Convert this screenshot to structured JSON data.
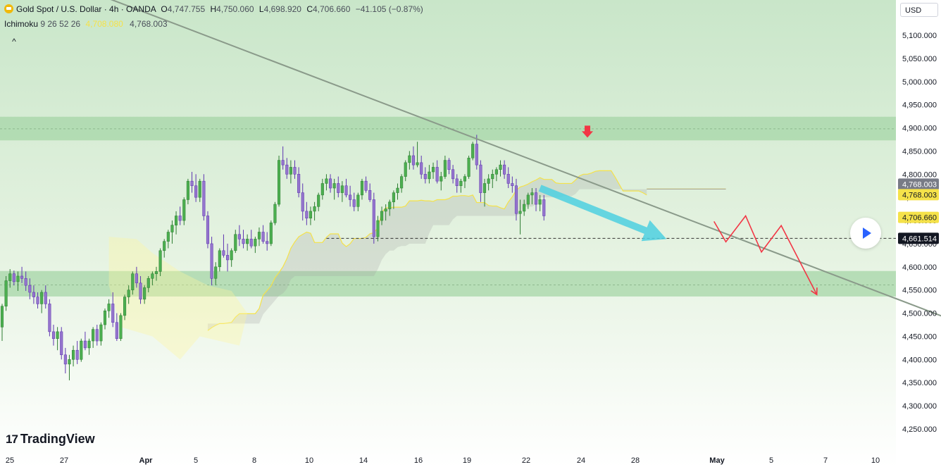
{
  "header": {
    "symbol_title": "Gold Spot / U.S. Dollar · 4h · OANDA",
    "ohlc": [
      {
        "key": "O",
        "value": "4,747.755"
      },
      {
        "key": "H",
        "value": "4,750.060"
      },
      {
        "key": "L",
        "value": "4,698.920"
      },
      {
        "key": "C",
        "value": "4,706.660"
      }
    ],
    "change": "−41.105 (−0.87%)"
  },
  "indicator": {
    "name": "Ichimoku",
    "params": "9 26 52 26",
    "value1": "4,708.080",
    "value2": "4,768.003"
  },
  "collapse_label": "^",
  "currency": "USD",
  "logo": {
    "mark": "17",
    "text": "TradingView"
  },
  "colors": {
    "bull": "#4caf50",
    "bear": "#9575cd",
    "zone": "#a5d6a7",
    "arrow_blue": "#4dd0e1",
    "arrow_red": "#f23645",
    "trendline": "#8a9a8a",
    "tenkan": "#f5e24a"
  },
  "chart_data": {
    "type": "candlestick",
    "timeframe": "4h",
    "y_ticks": [
      4250,
      4300,
      4350,
      4400,
      4450,
      4500,
      4550,
      4600,
      4650,
      4700,
      4750,
      4800,
      4850,
      4900,
      4950,
      5000,
      5050,
      5100
    ],
    "y_tick_labels": [
      "4,250.000",
      "4,300.000",
      "4,350.000",
      "4,400.000",
      "4,450.000",
      "4,500.000",
      "4,550.000",
      "4,600.000",
      "4,650.000",
      "4,700.000",
      "4,750.000",
      "4,800.000",
      "4,850.000",
      "4,900.000",
      "4,950.000",
      "5,000.000",
      "5,050.000",
      "5,100.000"
    ],
    "x_labels": [
      "25",
      "27",
      "Apr",
      "5",
      "8",
      "10",
      "14",
      "16",
      "19",
      "22",
      "24",
      "28",
      "May",
      "5",
      "7",
      "10"
    ],
    "price_labels": [
      {
        "text": "4,768.003",
        "price": 4768,
        "kind": "senkou-b"
      },
      {
        "text": "4,768.003",
        "price": 4768,
        "kind": "senkou-a"
      },
      {
        "text": "4,706.660",
        "price": 4706.66,
        "kind": "last"
      },
      {
        "text": "4,661.514",
        "price": 4661.514,
        "kind": "crosshair"
      }
    ],
    "zones": [
      {
        "top": 4924,
        "bottom": 4873,
        "mid": 4898
      },
      {
        "top": 4591,
        "bottom": 4536,
        "mid": 4561
      }
    ],
    "horizontal_level": 4661.514,
    "trendline": [
      {
        "bar": -1,
        "price": 5270
      },
      {
        "bar": 291,
        "price": 4320
      }
    ],
    "blue_arrow": [
      {
        "bar": 136,
        "price": 4770
      },
      {
        "bar": 168,
        "price": 4660
      }
    ],
    "red_marker": {
      "bar": 148,
      "price": 4885
    },
    "red_path": [
      [
        180,
        4698
      ],
      [
        183,
        4654
      ],
      [
        188,
        4710
      ],
      [
        192,
        4632
      ],
      [
        197,
        4689
      ],
      [
        206,
        4540
      ]
    ],
    "candles": [
      [
        4470,
        4520,
        4440,
        4515
      ],
      [
        4515,
        4580,
        4505,
        4570
      ],
      [
        4570,
        4595,
        4555,
        4585
      ],
      [
        4585,
        4592,
        4560,
        4568
      ],
      [
        4568,
        4590,
        4548,
        4580
      ],
      [
        4580,
        4600,
        4565,
        4575
      ],
      [
        4575,
        4590,
        4548,
        4560
      ],
      [
        4560,
        4575,
        4530,
        4545
      ],
      [
        4545,
        4560,
        4520,
        4535
      ],
      [
        4535,
        4545,
        4510,
        4520
      ],
      [
        4520,
        4550,
        4500,
        4545
      ],
      [
        4545,
        4560,
        4510,
        4520
      ],
      [
        4520,
        4530,
        4450,
        4460
      ],
      [
        4460,
        4475,
        4430,
        4445
      ],
      [
        4445,
        4470,
        4420,
        4460
      ],
      [
        4460,
        4470,
        4400,
        4410
      ],
      [
        4410,
        4425,
        4370,
        4390
      ],
      [
        4390,
        4410,
        4355,
        4400
      ],
      [
        4400,
        4430,
        4385,
        4420
      ],
      [
        4420,
        4440,
        4390,
        4400
      ],
      [
        4400,
        4445,
        4395,
        4440
      ],
      [
        4440,
        4460,
        4420,
        4425
      ],
      [
        4425,
        4445,
        4410,
        4440
      ],
      [
        4440,
        4470,
        4425,
        4465
      ],
      [
        4465,
        4475,
        4430,
        4440
      ],
      [
        4440,
        4480,
        4430,
        4475
      ],
      [
        4475,
        4510,
        4465,
        4505
      ],
      [
        4505,
        4530,
        4490,
        4520
      ],
      [
        4520,
        4545,
        4470,
        4480
      ],
      [
        4480,
        4500,
        4440,
        4445
      ],
      [
        4445,
        4500,
        4440,
        4495
      ],
      [
        4495,
        4540,
        4485,
        4535
      ],
      [
        4535,
        4560,
        4520,
        4550
      ],
      [
        4550,
        4590,
        4540,
        4585
      ],
      [
        4585,
        4600,
        4555,
        4565
      ],
      [
        4565,
        4580,
        4520,
        4530
      ],
      [
        4530,
        4560,
        4520,
        4555
      ],
      [
        4555,
        4580,
        4545,
        4575
      ],
      [
        4575,
        4590,
        4560,
        4585
      ],
      [
        4585,
        4600,
        4570,
        4590
      ],
      [
        4590,
        4640,
        4580,
        4635
      ],
      [
        4635,
        4660,
        4620,
        4655
      ],
      [
        4655,
        4680,
        4640,
        4675
      ],
      [
        4675,
        4700,
        4650,
        4690
      ],
      [
        4690,
        4720,
        4670,
        4710
      ],
      [
        4710,
        4730,
        4690,
        4700
      ],
      [
        4700,
        4750,
        4690,
        4745
      ],
      [
        4745,
        4790,
        4735,
        4785
      ],
      [
        4785,
        4805,
        4760,
        4775
      ],
      [
        4775,
        4800,
        4740,
        4750
      ],
      [
        4750,
        4790,
        4740,
        4785
      ],
      [
        4785,
        4800,
        4700,
        4710
      ],
      [
        4710,
        4720,
        4640,
        4650
      ],
      [
        4650,
        4665,
        4560,
        4575
      ],
      [
        4575,
        4610,
        4560,
        4600
      ],
      [
        4600,
        4640,
        4590,
        4635
      ],
      [
        4635,
        4670,
        4620,
        4625
      ],
      [
        4625,
        4650,
        4590,
        4615
      ],
      [
        4615,
        4640,
        4600,
        4635
      ],
      [
        4635,
        4680,
        4630,
        4670
      ],
      [
        4670,
        4690,
        4645,
        4660
      ],
      [
        4660,
        4680,
        4640,
        4650
      ],
      [
        4650,
        4670,
        4635,
        4660
      ],
      [
        4660,
        4680,
        4640,
        4645
      ],
      [
        4645,
        4665,
        4630,
        4660
      ],
      [
        4660,
        4685,
        4645,
        4675
      ],
      [
        4675,
        4690,
        4650,
        4655
      ],
      [
        4655,
        4675,
        4635,
        4650
      ],
      [
        4650,
        4700,
        4645,
        4695
      ],
      [
        4695,
        4740,
        4690,
        4735
      ],
      [
        4735,
        4840,
        4730,
        4830
      ],
      [
        4830,
        4860,
        4810,
        4820
      ],
      [
        4820,
        4835,
        4790,
        4800
      ],
      [
        4800,
        4830,
        4780,
        4815
      ],
      [
        4815,
        4830,
        4790,
        4800
      ],
      [
        4800,
        4815,
        4750,
        4760
      ],
      [
        4760,
        4780,
        4700,
        4720
      ],
      [
        4720,
        4740,
        4690,
        4705
      ],
      [
        4705,
        4730,
        4690,
        4720
      ],
      [
        4720,
        4740,
        4700,
        4730
      ],
      [
        4730,
        4760,
        4720,
        4755
      ],
      [
        4755,
        4790,
        4745,
        4780
      ],
      [
        4780,
        4800,
        4765,
        4790
      ],
      [
        4790,
        4800,
        4760,
        4770
      ],
      [
        4770,
        4790,
        4745,
        4780
      ],
      [
        4780,
        4795,
        4750,
        4760
      ],
      [
        4760,
        4785,
        4740,
        4775
      ],
      [
        4775,
        4790,
        4750,
        4755
      ],
      [
        4755,
        4775,
        4730,
        4745
      ],
      [
        4745,
        4760,
        4720,
        4730
      ],
      [
        4730,
        4760,
        4720,
        4755
      ],
      [
        4755,
        4790,
        4745,
        4785
      ],
      [
        4785,
        4795,
        4760,
        4765
      ],
      [
        4765,
        4780,
        4740,
        4745
      ],
      [
        4745,
        4760,
        4650,
        4665
      ],
      [
        4665,
        4710,
        4655,
        4700
      ],
      [
        4700,
        4730,
        4690,
        4720
      ],
      [
        4720,
        4735,
        4700,
        4725
      ],
      [
        4725,
        4745,
        4710,
        4740
      ],
      [
        4740,
        4765,
        4725,
        4760
      ],
      [
        4760,
        4780,
        4745,
        4770
      ],
      [
        4770,
        4800,
        4760,
        4795
      ],
      [
        4795,
        4830,
        4785,
        4825
      ],
      [
        4825,
        4850,
        4810,
        4840
      ],
      [
        4840,
        4860,
        4810,
        4820
      ],
      [
        4820,
        4870,
        4815,
        4825
      ],
      [
        4825,
        4840,
        4790,
        4800
      ],
      [
        4800,
        4815,
        4780,
        4790
      ],
      [
        4790,
        4820,
        4780,
        4805
      ],
      [
        4805,
        4825,
        4790,
        4815
      ],
      [
        4815,
        4830,
        4780,
        4785
      ],
      [
        4785,
        4805,
        4765,
        4795
      ],
      [
        4795,
        4840,
        4790,
        4830
      ],
      [
        4830,
        4835,
        4800,
        4810
      ],
      [
        4810,
        4820,
        4780,
        4790
      ],
      [
        4790,
        4800,
        4760,
        4775
      ],
      [
        4775,
        4790,
        4760,
        4785
      ],
      [
        4785,
        4800,
        4770,
        4795
      ],
      [
        4795,
        4840,
        4790,
        4835
      ],
      [
        4835,
        4870,
        4830,
        4865
      ],
      [
        4865,
        4885,
        4810,
        4820
      ],
      [
        4820,
        4830,
        4740,
        4760
      ],
      [
        4760,
        4790,
        4730,
        4780
      ],
      [
        4780,
        4800,
        4765,
        4790
      ],
      [
        4790,
        4810,
        4770,
        4800
      ],
      [
        4800,
        4815,
        4785,
        4810
      ],
      [
        4810,
        4830,
        4795,
        4820
      ],
      [
        4820,
        4830,
        4790,
        4800
      ],
      [
        4800,
        4815,
        4770,
        4780
      ],
      [
        4780,
        4795,
        4760,
        4775
      ],
      [
        4775,
        4790,
        4700,
        4715
      ],
      [
        4715,
        4745,
        4670,
        4720
      ],
      [
        4720,
        4745,
        4710,
        4735
      ],
      [
        4735,
        4760,
        4725,
        4755
      ],
      [
        4755,
        4770,
        4735,
        4760
      ],
      [
        4760,
        4770,
        4720,
        4735
      ],
      [
        4735,
        4755,
        4720,
        4745
      ],
      [
        4745,
        4755,
        4700,
        4710
      ]
    ]
  }
}
